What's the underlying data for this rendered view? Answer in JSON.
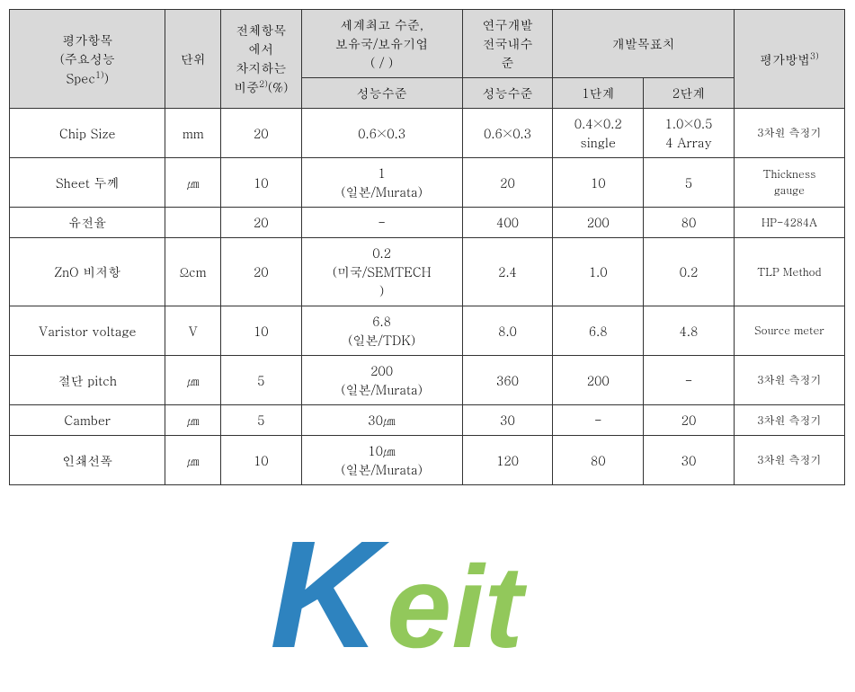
{
  "header": {
    "eval_item": "평가항목\n(주요성능\nSpec",
    "eval_sup": "1)",
    "eval_close": ")",
    "unit": "단위",
    "weight_top": "전체항목\n에서\n차지하는\n비중",
    "weight_sup": "2)",
    "weight_pct": "(%)",
    "world_top": "세계최고 수준,\n보유국/보유기업\n(    /    )",
    "world_sub": "성능수준",
    "domestic_top": "연구개발\n전국내수\n준",
    "domestic_sub": "성능수준",
    "target": "개발목표치",
    "phase1": "1단계",
    "phase2": "2단계",
    "method": "평가방법",
    "method_sup": "3)"
  },
  "rows": [
    {
      "name": "Chip Size",
      "unit": "mm",
      "weight": "20",
      "world": "0.6×0.3",
      "domestic": "0.6×0.3",
      "p1": "0.4×0.2\nsingle",
      "p2": "1.0×0.5\n4 Array",
      "method": "3차원 측정기"
    },
    {
      "name": "Sheet 두께",
      "unit": "㎛",
      "weight": "10",
      "world": "1\n(일본/Murata)",
      "domestic": "20",
      "p1": "10",
      "p2": "5",
      "method": "Thickness\ngauge"
    },
    {
      "name": "유전율",
      "unit": "",
      "weight": "20",
      "world": "-",
      "domestic": "400",
      "p1": "200",
      "p2": "80",
      "method": "HP-4284A"
    },
    {
      "name": "ZnO 비저항",
      "unit": "Ωcm",
      "weight": "20",
      "world": "0.2\n(미국/SEMTECH\n)",
      "domestic": "2.4",
      "p1": "1.0",
      "p2": "0.2",
      "method": "TLP Method"
    },
    {
      "name": "Varistor voltage",
      "unit": "V",
      "weight": "10",
      "world": "6.8\n(일본/TDK)",
      "domestic": "8.0",
      "p1": "6.8",
      "p2": "4.8",
      "method": "Source meter"
    },
    {
      "name": "절단 pitch",
      "unit": "㎛",
      "weight": "5",
      "world": "200\n(일본/Murata)",
      "domestic": "360",
      "p1": "200",
      "p2": "-",
      "method": "3차원 측정기"
    },
    {
      "name": "Camber",
      "unit": "㎛",
      "weight": "5",
      "world": "30㎛",
      "domestic": "30",
      "p1": "-",
      "p2": "20",
      "method": "3차원 측정기"
    },
    {
      "name": "인쇄선폭",
      "unit": "㎛",
      "weight": "10",
      "world": "10㎛\n(일본/Murata)",
      "domestic": "120",
      "p1": "80",
      "p2": "30",
      "method": "3차원 측정기"
    }
  ],
  "watermark": {
    "k": "K",
    "rest": "eit",
    "color_k": "#0a6eb4",
    "color_rest": "#7fbf3f"
  }
}
